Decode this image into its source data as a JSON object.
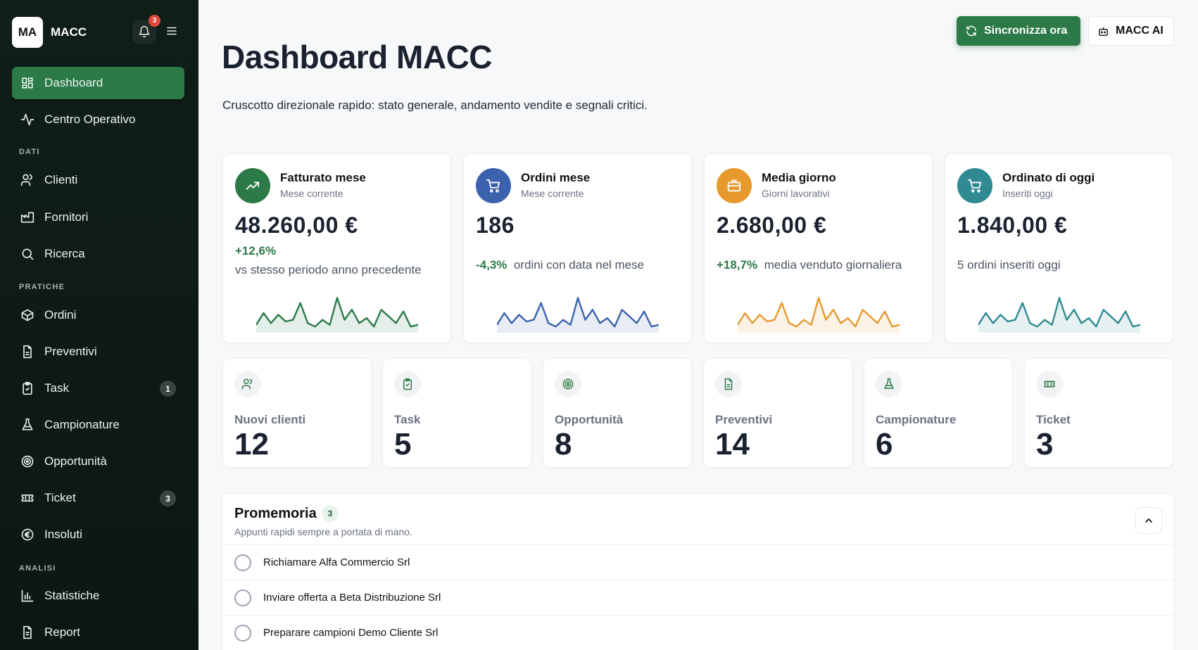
{
  "app": {
    "logo": "MA",
    "name": "MACC",
    "notification_count": "3"
  },
  "sidebar": {
    "items": [
      {
        "label": "Dashboard",
        "icon": "dashboard-icon"
      },
      {
        "label": "Centro Operativo",
        "icon": "activity-icon"
      }
    ],
    "sections": [
      {
        "title": "DATI",
        "items": [
          {
            "label": "Clienti",
            "icon": "users-icon"
          },
          {
            "label": "Fornitori",
            "icon": "factory-icon"
          },
          {
            "label": "Ricerca",
            "icon": "search-icon"
          }
        ]
      },
      {
        "title": "PRATICHE",
        "items": [
          {
            "label": "Ordini",
            "icon": "box-icon"
          },
          {
            "label": "Preventivi",
            "icon": "document-icon"
          },
          {
            "label": "Task",
            "icon": "clipboard-icon",
            "count": "1"
          },
          {
            "label": "Campionature",
            "icon": "flask-icon"
          },
          {
            "label": "Opportunità",
            "icon": "target-icon"
          },
          {
            "label": "Ticket",
            "icon": "ticket-icon",
            "count": "3"
          },
          {
            "label": "Insoluti",
            "icon": "euro-icon"
          }
        ]
      },
      {
        "title": "ANALISI",
        "items": [
          {
            "label": "Statistiche",
            "icon": "bar-chart-icon"
          },
          {
            "label": "Report",
            "icon": "report-icon"
          }
        ]
      }
    ]
  },
  "header": {
    "sync_label": "Sincronizza ora",
    "ai_label": "MACC AI",
    "title": "Dashboard MACC",
    "subtitle": "Cruscotto direzionale rapido: stato generale, andamento vendite e segnali critici."
  },
  "kpis": [
    {
      "title": "Fatturato mese",
      "sub": "Mese corrente",
      "value": "48.260,00 €",
      "delta": "+12,6%",
      "note": "vs stesso periodo anno precedente",
      "color": "#2b7a47",
      "icon": "trending-up-icon",
      "spark": [
        0.15,
        0.5,
        0.2,
        0.45,
        0.25,
        0.3,
        0.8,
        0.2,
        0.1,
        0.3,
        0.15,
        0.95,
        0.3,
        0.6,
        0.2,
        0.35,
        0.1,
        0.6,
        0.4,
        0.2,
        0.55,
        0.1,
        0.15
      ]
    },
    {
      "title": "Ordini mese",
      "sub": "Mese corrente",
      "value": "186",
      "delta": "-4,3%",
      "note": "ordini con data nel mese",
      "color": "#3b62ad",
      "icon": "cart-icon",
      "spark": [
        0.15,
        0.5,
        0.2,
        0.45,
        0.25,
        0.3,
        0.8,
        0.2,
        0.1,
        0.3,
        0.15,
        0.95,
        0.3,
        0.6,
        0.2,
        0.35,
        0.1,
        0.6,
        0.4,
        0.2,
        0.55,
        0.1,
        0.15
      ]
    },
    {
      "title": "Media giorno",
      "sub": "Giorni lavorativi",
      "value": "2.680,00 €",
      "delta": "+18,7%",
      "note": "media venduto giornaliera",
      "color": "#e69a2e",
      "icon": "briefcase-icon",
      "spark": [
        0.15,
        0.5,
        0.2,
        0.45,
        0.25,
        0.3,
        0.8,
        0.2,
        0.1,
        0.3,
        0.15,
        0.95,
        0.3,
        0.6,
        0.2,
        0.35,
        0.1,
        0.6,
        0.4,
        0.2,
        0.55,
        0.1,
        0.15
      ]
    },
    {
      "title": "Ordinato di oggi",
      "sub": "Inseriti oggi",
      "value": "1.840,00 €",
      "delta": "",
      "note": "5 ordini inseriti oggi",
      "color": "#2f8a92",
      "icon": "cart-icon",
      "spark": [
        0.15,
        0.5,
        0.2,
        0.45,
        0.25,
        0.3,
        0.8,
        0.2,
        0.1,
        0.3,
        0.15,
        0.95,
        0.3,
        0.6,
        0.2,
        0.35,
        0.1,
        0.6,
        0.4,
        0.2,
        0.55,
        0.1,
        0.15
      ]
    }
  ],
  "stats": [
    {
      "label": "Nuovi clienti",
      "value": "12",
      "icon": "users-icon"
    },
    {
      "label": "Task",
      "value": "5",
      "icon": "clipboard-icon"
    },
    {
      "label": "Opportunità",
      "value": "8",
      "icon": "target-icon"
    },
    {
      "label": "Preventivi",
      "value": "14",
      "icon": "document-icon"
    },
    {
      "label": "Campionature",
      "value": "6",
      "icon": "flask-icon"
    },
    {
      "label": "Ticket",
      "value": "3",
      "icon": "ticket-icon"
    }
  ],
  "promemoria": {
    "title": "Promemoria",
    "count": "3",
    "subtitle": "Appunti rapidi sempre a portata di mano.",
    "items": [
      "Richiamare Alfa Commercio Srl",
      "Inviare offerta a Beta Distribuzione Srl",
      "Preparare campioni Demo Cliente Srl"
    ]
  }
}
